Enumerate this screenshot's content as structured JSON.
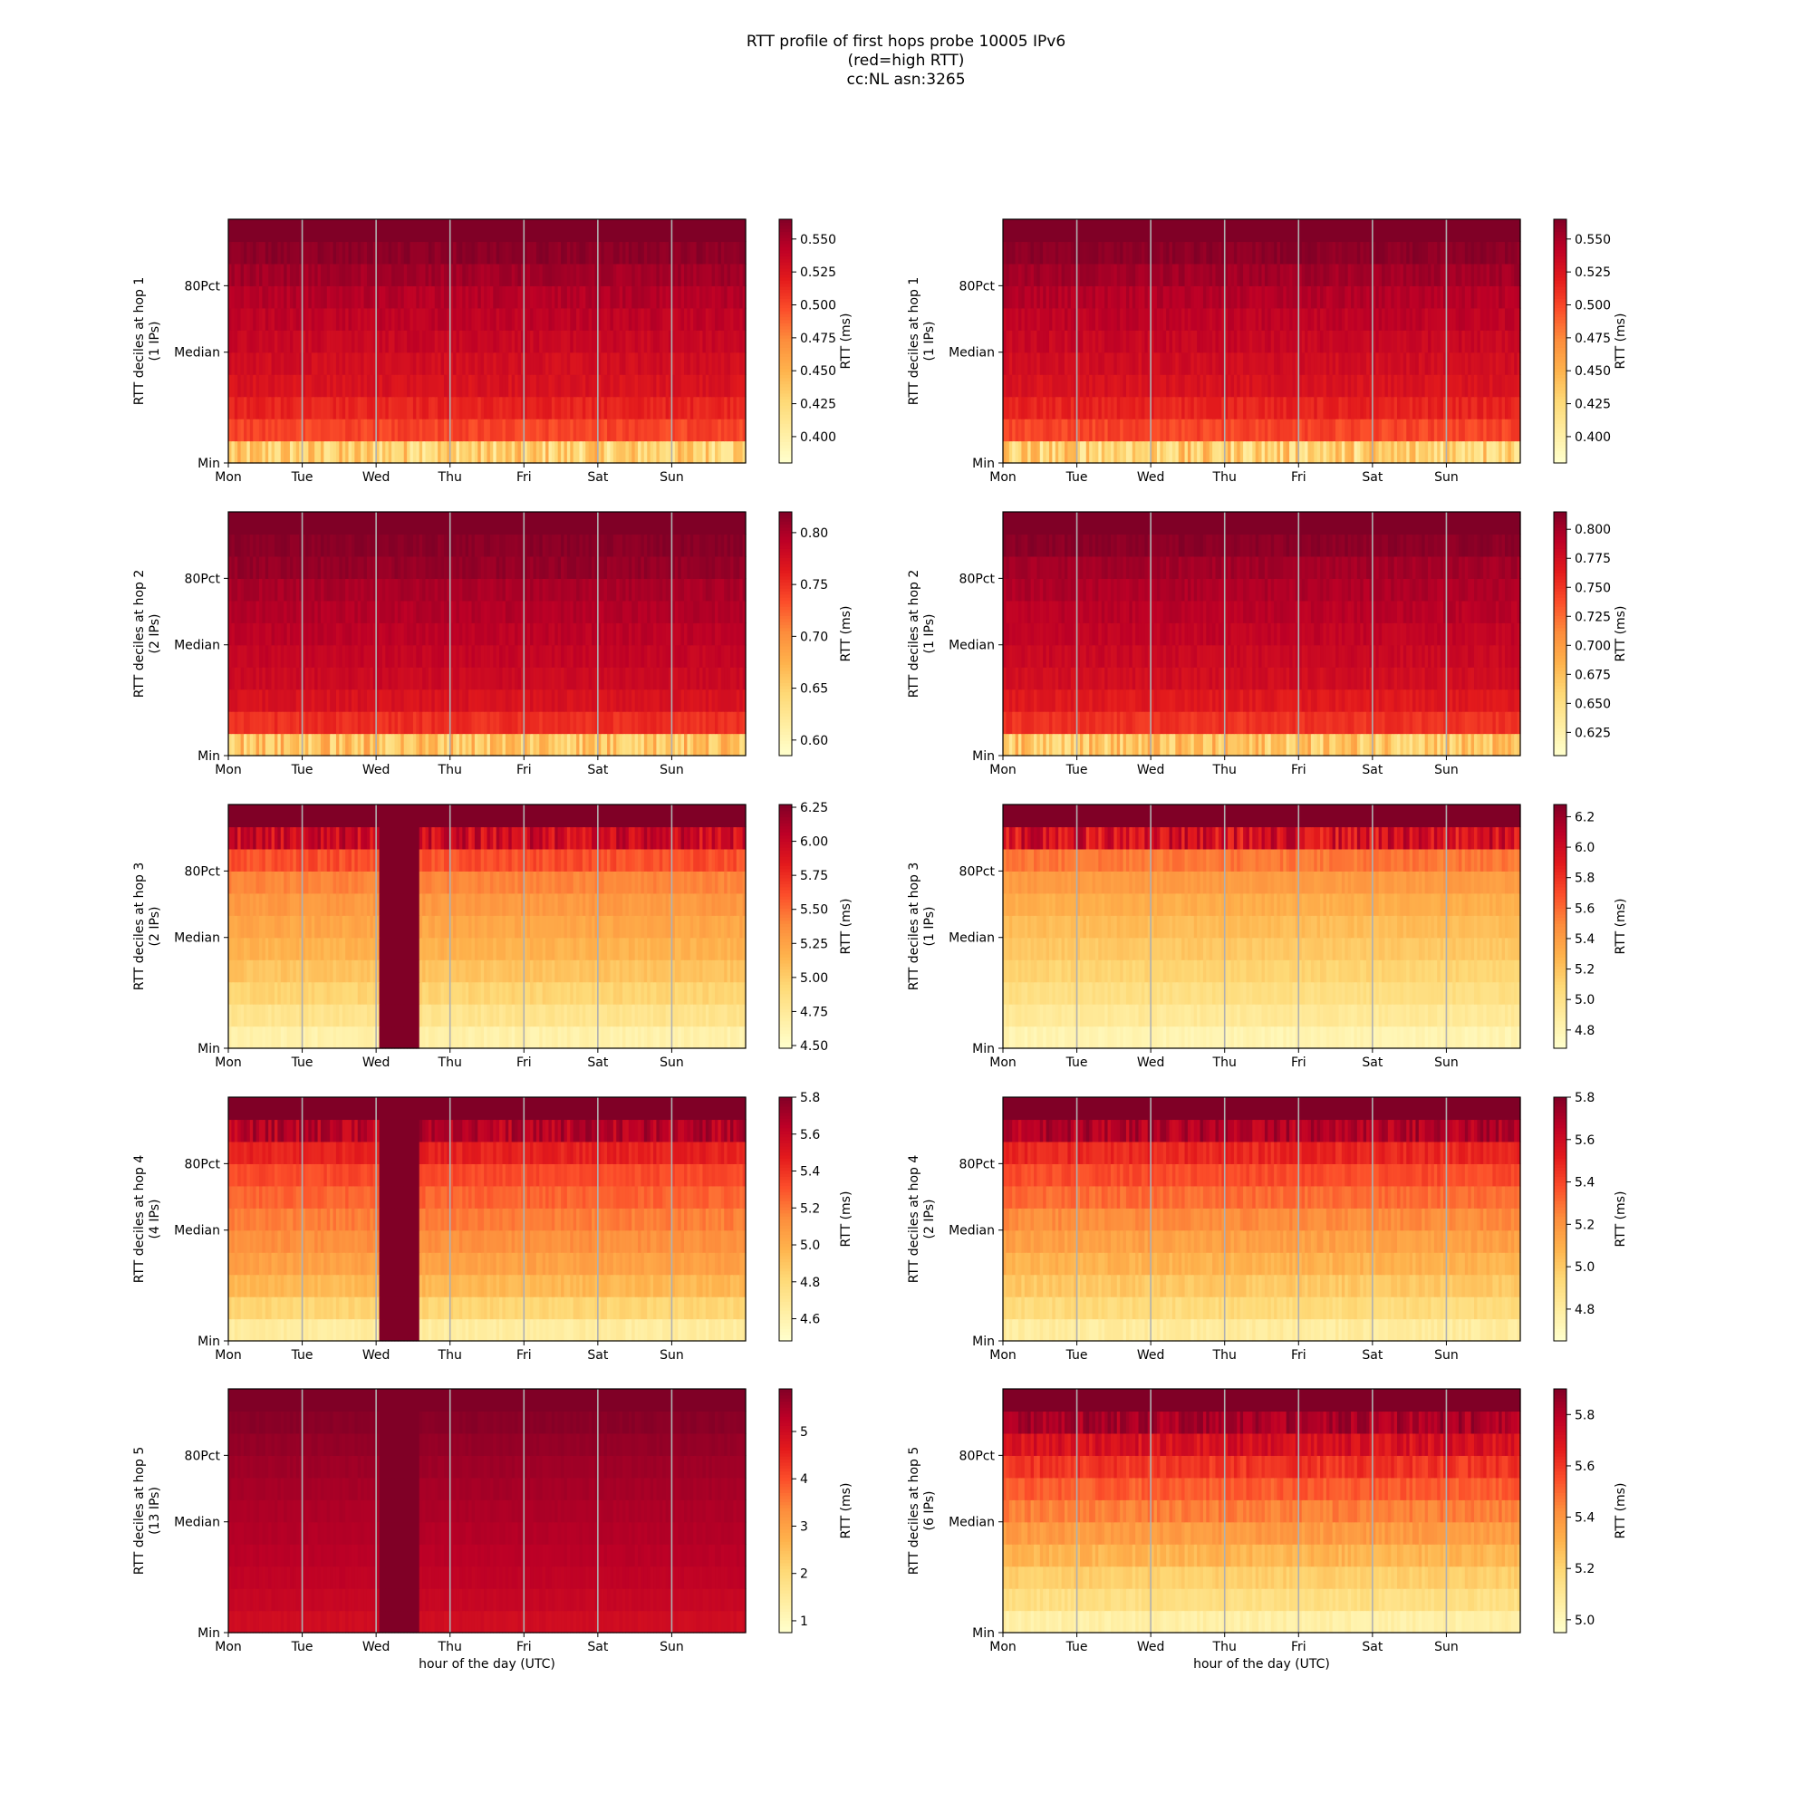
{
  "title_lines": [
    "RTT profile of first hops probe 10005 IPv6",
    "(red=high RTT)",
    "cc:NL asn:3265"
  ],
  "x_tick_labels": [
    "Mon",
    "Tue",
    "Wed",
    "Thu",
    "Fri",
    "Sat",
    "Sun"
  ],
  "y_tick_labels": [
    "Min",
    "Median",
    "80Pct"
  ],
  "x_axis_label": "hour of the day (UTC)",
  "colorbar_label": "RTT (ms)",
  "colormap": [
    "#ffffcc",
    "#ffeda0",
    "#fed976",
    "#feb24c",
    "#fd8d3c",
    "#fc4e2a",
    "#e31a1c",
    "#bd0026",
    "#800026"
  ],
  "chart_data": [
    {
      "type": "heatmap",
      "hop": 1,
      "ips": "(1 IPs)",
      "ylabel": "RTT deciles at hop 1",
      "deciles": 11,
      "time_bins": 168,
      "x_label": "",
      "colorbar": {
        "min": 0.38,
        "max": 0.565,
        "ticks": [
          0.4,
          0.425,
          0.45,
          0.475,
          0.5,
          0.525,
          0.55
        ],
        "tick_labels": [
          "0.400",
          "0.425",
          "0.450",
          "0.475",
          "0.500",
          "0.525",
          "0.550"
        ]
      },
      "decile_levels": [
        0.43,
        0.5,
        0.515,
        0.525,
        0.53,
        0.535,
        0.54,
        0.545,
        0.552,
        0.56,
        0.565
      ],
      "noise": [
        0.03,
        0.008,
        0.007,
        0.006,
        0.006,
        0.006,
        0.006,
        0.006,
        0.006,
        0.005,
        0.0
      ],
      "anomaly": null
    },
    {
      "type": "heatmap",
      "hop": 1,
      "ips": "(1 IPs)",
      "ylabel": "RTT deciles at hop 1",
      "deciles": 11,
      "time_bins": 168,
      "x_label": "",
      "colorbar": {
        "min": 0.38,
        "max": 0.565,
        "ticks": [
          0.4,
          0.425,
          0.45,
          0.475,
          0.5,
          0.525,
          0.55
        ],
        "tick_labels": [
          "0.400",
          "0.425",
          "0.450",
          "0.475",
          "0.500",
          "0.525",
          "0.550"
        ]
      },
      "decile_levels": [
        0.43,
        0.5,
        0.515,
        0.525,
        0.53,
        0.535,
        0.54,
        0.545,
        0.552,
        0.56,
        0.565
      ],
      "noise": [
        0.03,
        0.008,
        0.007,
        0.006,
        0.006,
        0.006,
        0.006,
        0.006,
        0.006,
        0.005,
        0.0
      ],
      "anomaly": null
    },
    {
      "type": "heatmap",
      "hop": 2,
      "ips": "(2 IPs)",
      "ylabel": "RTT deciles at hop 2",
      "deciles": 11,
      "time_bins": 168,
      "x_label": "",
      "colorbar": {
        "min": 0.585,
        "max": 0.82,
        "ticks": [
          0.6,
          0.65,
          0.7,
          0.75,
          0.8
        ],
        "tick_labels": [
          "0.60",
          "0.65",
          "0.70",
          "0.75",
          "0.80"
        ]
      },
      "decile_levels": [
        0.66,
        0.75,
        0.77,
        0.78,
        0.785,
        0.79,
        0.795,
        0.8,
        0.81,
        0.815,
        0.82
      ],
      "noise": [
        0.035,
        0.008,
        0.007,
        0.006,
        0.006,
        0.006,
        0.006,
        0.006,
        0.006,
        0.005,
        0.0
      ],
      "anomaly": null
    },
    {
      "type": "heatmap",
      "hop": 2,
      "ips": "(1 IPs)",
      "ylabel": "RTT deciles at hop 2",
      "deciles": 11,
      "time_bins": 168,
      "x_label": "",
      "colorbar": {
        "min": 0.605,
        "max": 0.815,
        "ticks": [
          0.625,
          0.65,
          0.675,
          0.7,
          0.725,
          0.75,
          0.775,
          0.8
        ],
        "tick_labels": [
          "0.625",
          "0.650",
          "0.675",
          "0.700",
          "0.725",
          "0.750",
          "0.775",
          "0.800"
        ]
      },
      "decile_levels": [
        0.67,
        0.75,
        0.765,
        0.775,
        0.78,
        0.785,
        0.79,
        0.795,
        0.8,
        0.81,
        0.815
      ],
      "noise": [
        0.03,
        0.007,
        0.006,
        0.006,
        0.006,
        0.006,
        0.006,
        0.006,
        0.006,
        0.005,
        0.0
      ],
      "anomaly": null
    },
    {
      "type": "heatmap",
      "hop": 3,
      "ips": "(2 IPs)",
      "ylabel": "RTT deciles at hop 3",
      "deciles": 11,
      "time_bins": 168,
      "x_label": "",
      "colorbar": {
        "min": 4.48,
        "max": 6.27,
        "ticks": [
          4.5,
          4.75,
          5.0,
          5.25,
          5.5,
          5.75,
          6.0,
          6.25
        ],
        "tick_labels": [
          "4.50",
          "4.75",
          "5.00",
          "5.25",
          "5.50",
          "5.75",
          "6.00",
          "6.25"
        ]
      },
      "decile_levels": [
        4.65,
        4.8,
        4.95,
        5.05,
        5.15,
        5.22,
        5.3,
        5.4,
        5.6,
        5.95,
        6.27
      ],
      "noise": [
        0.05,
        0.05,
        0.05,
        0.05,
        0.05,
        0.05,
        0.05,
        0.05,
        0.08,
        0.2,
        0.0
      ],
      "anomaly": {
        "start_day": 2.02,
        "end_day": 2.58,
        "value": 6.27
      }
    },
    {
      "type": "heatmap",
      "hop": 3,
      "ips": "(1 IPs)",
      "ylabel": "RTT deciles at hop 3",
      "deciles": 11,
      "time_bins": 168,
      "x_label": "",
      "colorbar": {
        "min": 4.68,
        "max": 6.28,
        "ticks": [
          4.8,
          5.0,
          5.2,
          5.4,
          5.6,
          5.8,
          6.0,
          6.2
        ],
        "tick_labels": [
          "4.8",
          "5.0",
          "5.2",
          "5.4",
          "5.6",
          "5.8",
          "6.0",
          "6.2"
        ]
      },
      "decile_levels": [
        4.8,
        4.92,
        5.02,
        5.1,
        5.17,
        5.23,
        5.3,
        5.4,
        5.55,
        5.95,
        6.28
      ],
      "noise": [
        0.04,
        0.04,
        0.04,
        0.04,
        0.04,
        0.04,
        0.04,
        0.04,
        0.06,
        0.2,
        0.0
      ],
      "anomaly": null
    },
    {
      "type": "heatmap",
      "hop": 4,
      "ips": "(4 IPs)",
      "ylabel": "RTT deciles at hop 4",
      "deciles": 11,
      "time_bins": 168,
      "x_label": "",
      "colorbar": {
        "min": 4.48,
        "max": 5.8,
        "ticks": [
          4.6,
          4.8,
          5.0,
          5.2,
          5.4,
          5.6,
          5.8
        ],
        "tick_labels": [
          "4.6",
          "4.8",
          "5.0",
          "5.2",
          "5.4",
          "5.6",
          "5.8"
        ]
      },
      "decile_levels": [
        4.65,
        4.82,
        4.95,
        5.05,
        5.12,
        5.18,
        5.25,
        5.32,
        5.45,
        5.65,
        5.8
      ],
      "noise": [
        0.04,
        0.04,
        0.04,
        0.04,
        0.04,
        0.04,
        0.04,
        0.04,
        0.05,
        0.12,
        0.0
      ],
      "anomaly": {
        "start_day": 2.02,
        "end_day": 2.58,
        "value": 5.8
      }
    },
    {
      "type": "heatmap",
      "hop": 4,
      "ips": "(2 IPs)",
      "ylabel": "RTT deciles at hop 4",
      "deciles": 11,
      "time_bins": 168,
      "x_label": "",
      "colorbar": {
        "min": 4.65,
        "max": 5.8,
        "ticks": [
          4.8,
          5.0,
          5.2,
          5.4,
          5.6,
          5.8
        ],
        "tick_labels": [
          "4.8",
          "5.0",
          "5.2",
          "5.4",
          "5.6",
          "5.8"
        ]
      },
      "decile_levels": [
        4.8,
        4.92,
        5.0,
        5.08,
        5.15,
        5.22,
        5.3,
        5.38,
        5.48,
        5.68,
        5.8
      ],
      "noise": [
        0.04,
        0.04,
        0.04,
        0.04,
        0.04,
        0.04,
        0.04,
        0.04,
        0.05,
        0.1,
        0.0
      ],
      "anomaly": null
    },
    {
      "type": "heatmap",
      "hop": 5,
      "ips": "(13 IPs)",
      "ylabel": "RTT deciles at hop 5",
      "deciles": 11,
      "time_bins": 168,
      "x_label": "hour of the day (UTC)",
      "colorbar": {
        "min": 0.75,
        "max": 5.9,
        "ticks": [
          1,
          2,
          3,
          4,
          5
        ],
        "tick_labels": [
          "1",
          "2",
          "3",
          "4",
          "5"
        ]
      },
      "decile_levels": [
        4.95,
        5.1,
        5.2,
        5.28,
        5.35,
        5.42,
        5.5,
        5.58,
        5.68,
        5.8,
        5.9
      ],
      "noise": [
        0.06,
        0.05,
        0.05,
        0.05,
        0.05,
        0.05,
        0.05,
        0.05,
        0.05,
        0.05,
        0.0
      ],
      "anomaly": {
        "start_day": 2.02,
        "end_day": 2.58,
        "value": 5.9
      }
    },
    {
      "type": "heatmap",
      "hop": 5,
      "ips": "(6 IPs)",
      "ylabel": "RTT deciles at hop 5",
      "deciles": 11,
      "time_bins": 168,
      "x_label": "hour of the day (UTC)",
      "colorbar": {
        "min": 4.95,
        "max": 5.9,
        "ticks": [
          5.0,
          5.2,
          5.4,
          5.6,
          5.8
        ],
        "tick_labels": [
          "5.0",
          "5.2",
          "5.4",
          "5.6",
          "5.8"
        ]
      },
      "decile_levels": [
        5.05,
        5.15,
        5.22,
        5.3,
        5.38,
        5.45,
        5.52,
        5.6,
        5.7,
        5.82,
        5.9
      ],
      "noise": [
        0.03,
        0.03,
        0.03,
        0.04,
        0.04,
        0.04,
        0.04,
        0.05,
        0.06,
        0.07,
        0.0
      ],
      "anomaly": null
    }
  ]
}
